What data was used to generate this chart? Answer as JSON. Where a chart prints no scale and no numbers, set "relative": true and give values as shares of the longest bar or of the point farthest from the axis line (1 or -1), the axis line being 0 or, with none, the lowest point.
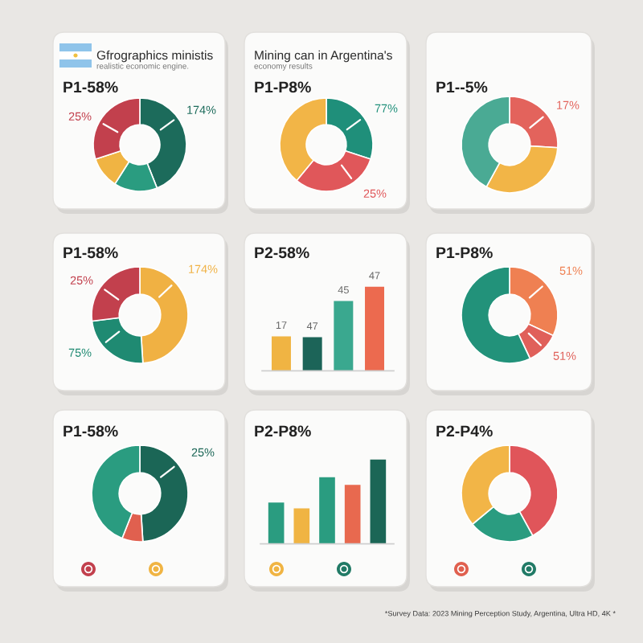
{
  "chart_data": [
    {
      "type": "donut",
      "title": "P1-58%",
      "annotations": [
        "Gfrographics ministis",
        "realistic economic engine.",
        "25%",
        "174%"
      ],
      "categories": [
        null,
        null,
        null,
        null
      ],
      "values": [
        44,
        15,
        11,
        30
      ],
      "colors": [
        "#1c6b5b",
        "#2a9c80",
        "#f0b443",
        "#c2404d"
      ]
    },
    {
      "type": "donut",
      "title": "P1-P8%",
      "annotations": [
        "Mining can in Argentina's",
        "economy results",
        "77%",
        "25%"
      ],
      "categories": [
        null,
        null,
        null
      ],
      "values": [
        30,
        31,
        39
      ],
      "colors": [
        "#1f8f7a",
        "#e0575a",
        "#f2b547"
      ]
    },
    {
      "type": "donut",
      "title": "P1--5%",
      "annotations": [
        "17%"
      ],
      "categories": [
        null,
        null,
        null
      ],
      "values": [
        26,
        32,
        42
      ],
      "colors": [
        "#e3635c",
        "#f2b547",
        "#4aaa94"
      ]
    },
    {
      "type": "donut",
      "title": "P1-58%",
      "annotations": [
        "25%",
        "174%",
        "75%"
      ],
      "categories": [
        null,
        null,
        null
      ],
      "values": [
        49,
        24,
        27
      ],
      "colors": [
        "#f0b143",
        "#1f8a72",
        "#c2404d"
      ]
    },
    {
      "type": "bar",
      "title": "P2-58%",
      "relative": true,
      "annotations": [
        "17",
        "47",
        "45",
        "47"
      ],
      "categories": [
        null,
        null,
        null,
        null
      ],
      "values": [
        0.41,
        0.4,
        0.83,
        1
      ],
      "colors": [
        "#f0b443",
        "#1c6458",
        "#3aa88f",
        "#ec6a4f"
      ]
    },
    {
      "type": "donut",
      "title": "P1-P8%",
      "annotations": [
        "51%",
        "51%"
      ],
      "categories": [
        null,
        null,
        null
      ],
      "values": [
        32,
        11,
        57
      ],
      "colors": [
        "#ef8052",
        "#e0605a",
        "#22927a"
      ]
    },
    {
      "type": "donut",
      "title": "P1-58%",
      "annotations": [
        "25%"
      ],
      "categories": [
        null,
        null,
        null
      ],
      "values": [
        49,
        7,
        44
      ],
      "colors": [
        "#1b6656",
        "#e0604f",
        "#2a9c80"
      ]
    },
    {
      "type": "bar",
      "title": "P2-P8%",
      "relative": true,
      "categories": [
        null,
        null,
        null,
        null,
        null
      ],
      "values": [
        0.49,
        0.42,
        0.79,
        0.7,
        1
      ],
      "colors": [
        "#2a9c80",
        "#f0b443",
        "#2a9c80",
        "#e8694f",
        "#1b6656"
      ]
    },
    {
      "type": "donut",
      "title": "P2-P4%",
      "categories": [
        null,
        null,
        null
      ],
      "values": [
        42,
        22,
        36
      ],
      "colors": [
        "#e0555a",
        "#2a9c80",
        "#f2b547"
      ]
    },
    {
      "type": "other",
      "annotations": [
        "*Survey Data: 2023 Mining Perception Study, Argentina, Ultra HD, 4K *"
      ]
    }
  ]
}
